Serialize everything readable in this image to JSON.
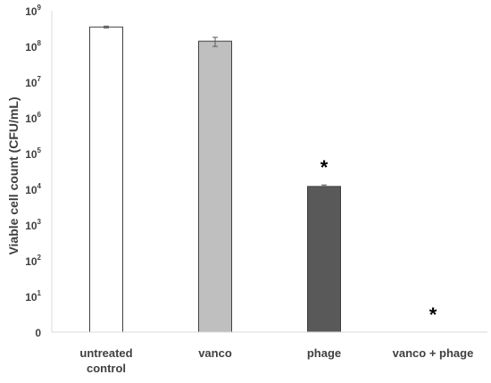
{
  "chart_data": {
    "type": "bar",
    "title": "",
    "ylabel": "Viable cell count (CFU/mL)",
    "xlabel": "",
    "y_scale": "log10",
    "ylim": [
      1,
      1000000000
    ],
    "y_ticks": [
      {
        "value": 1,
        "base": "0",
        "exp": ""
      },
      {
        "value": 10,
        "base": "10",
        "exp": "1"
      },
      {
        "value": 100,
        "base": "10",
        "exp": "2"
      },
      {
        "value": 1000,
        "base": "10",
        "exp": "3"
      },
      {
        "value": 10000,
        "base": "10",
        "exp": "4"
      },
      {
        "value": 100000,
        "base": "10",
        "exp": "5"
      },
      {
        "value": 1000000,
        "base": "10",
        "exp": "6"
      },
      {
        "value": 10000000,
        "base": "10",
        "exp": "7"
      },
      {
        "value": 100000000,
        "base": "10",
        "exp": "8"
      },
      {
        "value": 1000000000,
        "base": "10",
        "exp": "9"
      }
    ],
    "categories": [
      [
        "untreated",
        "control"
      ],
      [
        "vanco"
      ],
      [
        "phage"
      ],
      [
        "vanco + phage"
      ]
    ],
    "values": [
      350000000,
      140000000,
      12000,
      0
    ],
    "error": [
      20000000,
      40000000,
      1200,
      0
    ],
    "colors": [
      "#ffffff",
      "#bfbfbf",
      "#595959",
      "#ffffff"
    ],
    "annotations": [
      {
        "category_index": 2,
        "text": "*"
      },
      {
        "category_index": 3,
        "text": "*"
      }
    ]
  }
}
